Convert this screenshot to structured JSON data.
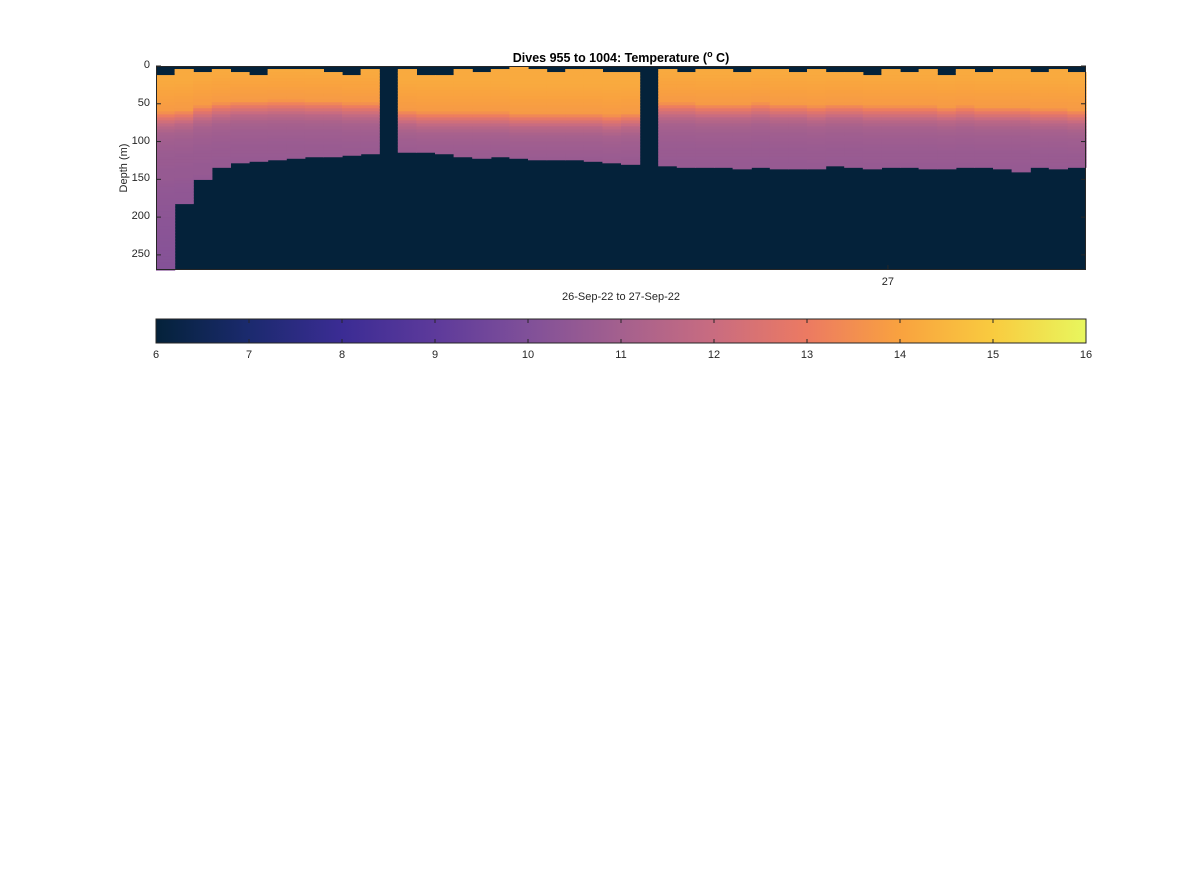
{
  "chart_data": {
    "type": "heatmap",
    "title_main": "Dives 955 to 1004: Temperature (",
    "title_sup": "o",
    "title_end": " C)",
    "ylabel": "Depth (m)",
    "xlabel": "26-Sep-22 to 27-Sep-22",
    "yticks": [
      0,
      50,
      100,
      150,
      200,
      250
    ],
    "ylim": [
      0,
      270
    ],
    "y_reversed": true,
    "xticks": [
      {
        "label": "27",
        "position": 0.787
      }
    ],
    "colorbar": {
      "ticks": [
        6,
        7,
        8,
        9,
        10,
        11,
        12,
        13,
        14,
        15,
        16
      ],
      "range": [
        6,
        16
      ],
      "orientation": "horizontal",
      "colors": [
        "#04223a",
        "#1b2a6e",
        "#3b2c94",
        "#5d3a9b",
        "#805099",
        "#a4608e",
        "#c96c80",
        "#ec7a62",
        "#f9a23f",
        "#f9cb3f",
        "#e8f75e"
      ]
    },
    "background_value": 6,
    "profile": {
      "depth": [
        0,
        10,
        20,
        30,
        40,
        50,
        60,
        70,
        80,
        90,
        100,
        110,
        120,
        130,
        140,
        150,
        200,
        270
      ],
      "temperature": [
        14.2,
        14.2,
        14.1,
        14.0,
        13.9,
        13.8,
        12.6,
        11.6,
        11.1,
        10.9,
        10.8,
        10.7,
        10.7,
        10.6,
        10.6,
        10.5,
        10.3,
        10.1
      ]
    },
    "dives": {
      "count": 50,
      "top_depth": [
        12,
        4,
        8,
        4,
        8,
        12,
        4,
        4,
        4,
        8,
        12,
        4,
        8,
        4,
        12,
        12,
        4,
        8,
        4,
        0,
        4,
        8,
        4,
        4,
        8,
        8,
        8,
        4,
        8,
        4,
        4,
        8,
        4,
        4,
        8,
        4,
        8,
        8,
        12,
        4,
        8,
        4,
        12,
        4,
        8,
        4,
        4,
        8,
        4,
        8
      ],
      "bottom_depth": [
        270,
        182,
        150,
        134,
        128,
        126,
        124,
        122,
        120,
        120,
        118,
        116,
        0,
        114,
        114,
        116,
        120,
        122,
        120,
        122,
        124,
        124,
        124,
        126,
        128,
        130,
        0,
        132,
        134,
        134,
        134,
        136,
        134,
        136,
        136,
        136,
        132,
        134,
        136,
        134,
        134,
        136,
        136,
        134,
        134,
        136,
        140,
        134,
        136,
        134
      ],
      "mixed_layer_depth": [
        60,
        58,
        52,
        48,
        46,
        46,
        45,
        45,
        46,
        46,
        48,
        48,
        0,
        58,
        60,
        60,
        60,
        60,
        60,
        62,
        62,
        62,
        62,
        62,
        64,
        62,
        0,
        48,
        48,
        50,
        50,
        50,
        48,
        50,
        50,
        52,
        50,
        50,
        52,
        52,
        52,
        52,
        54,
        52,
        54,
        54,
        54,
        56,
        56,
        58
      ]
    }
  }
}
